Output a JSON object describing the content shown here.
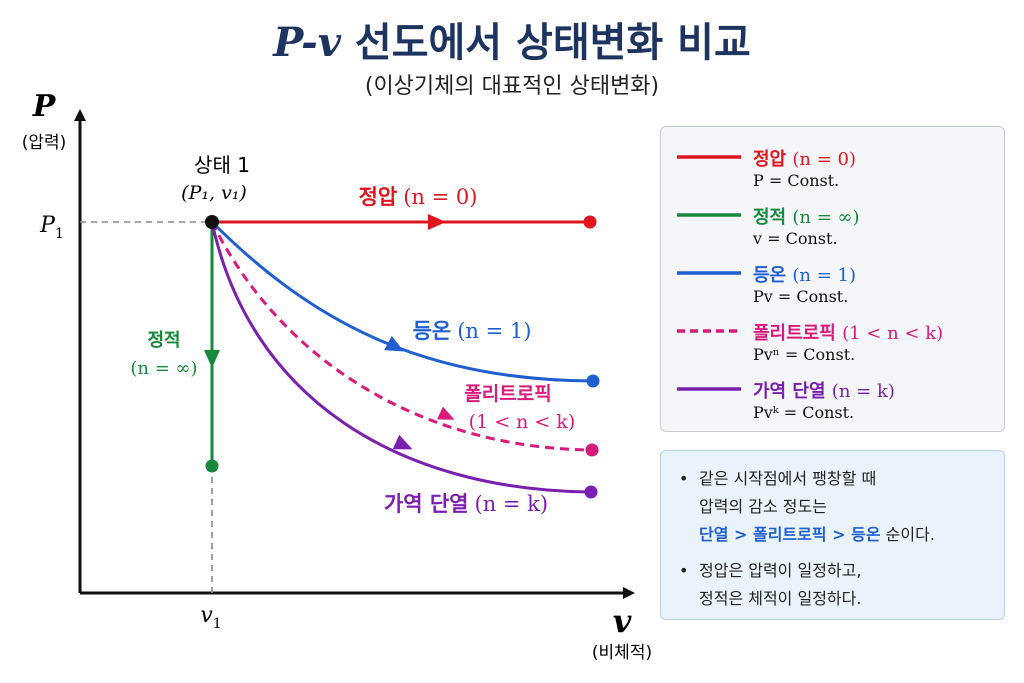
{
  "title": {
    "math": "P-v",
    "text": " 선도에서 상태변화 비교"
  },
  "subtitle": "(이상기체의 대표적인 상태변화)",
  "axes": {
    "y_symbol": "P",
    "y_label": "(압력)",
    "x_symbol": "v",
    "x_label": "(비체적)",
    "p1_tick": "P",
    "p1_sub": "1",
    "v1_tick": "v",
    "v1_sub": "1"
  },
  "state1": {
    "label": "상태 1",
    "coord": "(P₁, v₁)"
  },
  "curve_labels": {
    "isobaric_name": "정압",
    "isobaric_cond": "(n = 0)",
    "isochoric_name": "정적",
    "isochoric_cond": "(n = ∞)",
    "isothermal_name": "등온",
    "isothermal_cond": "(n = 1)",
    "polytropic_name": "폴리트로픽",
    "polytropic_cond": "(1 < n < k)",
    "adiabatic_name": "가역 단열",
    "adiabatic_cond": "(n = k)"
  },
  "legend": [
    {
      "name": "정압",
      "cond": "(n = 0)",
      "eq": "P = Const.",
      "color": "#e0161e",
      "dash": false
    },
    {
      "name": "정적",
      "cond": "(n = ∞)",
      "eq": "v = Const.",
      "color": "#17893a",
      "dash": false
    },
    {
      "name": "등온",
      "cond": "(n = 1)",
      "eq": "Pv = Const.",
      "color": "#1f5fcf",
      "dash": false
    },
    {
      "name": "폴리트로픽",
      "cond": "(1 < n < k)",
      "eq": "Pvⁿ = Const.",
      "color": "#d81b7a",
      "dash": true
    },
    {
      "name": "가역 단열",
      "cond": "(n = k)",
      "eq": "Pvᵏ = Const.",
      "color": "#7a1fb0",
      "dash": false
    }
  ],
  "notes": {
    "n1_line1": "같은 시작점에서 팽창할 때",
    "n1_line2": "압력의 감소 정도는",
    "n1_highlight": "단열 > 폴리트로픽 > 등온",
    "n1_tail": " 순이다.",
    "n2_line1": "정압은 압력이 일정하고,",
    "n2_line2": "정적은 체적이 일정하다."
  },
  "colors": {
    "isobaric": "#e0161e",
    "isochoric": "#17893a",
    "isothermal": "#1f5fcf",
    "polytropic": "#d81b7a",
    "adiabatic": "#7a1fb0",
    "title": "#1d3461"
  }
}
